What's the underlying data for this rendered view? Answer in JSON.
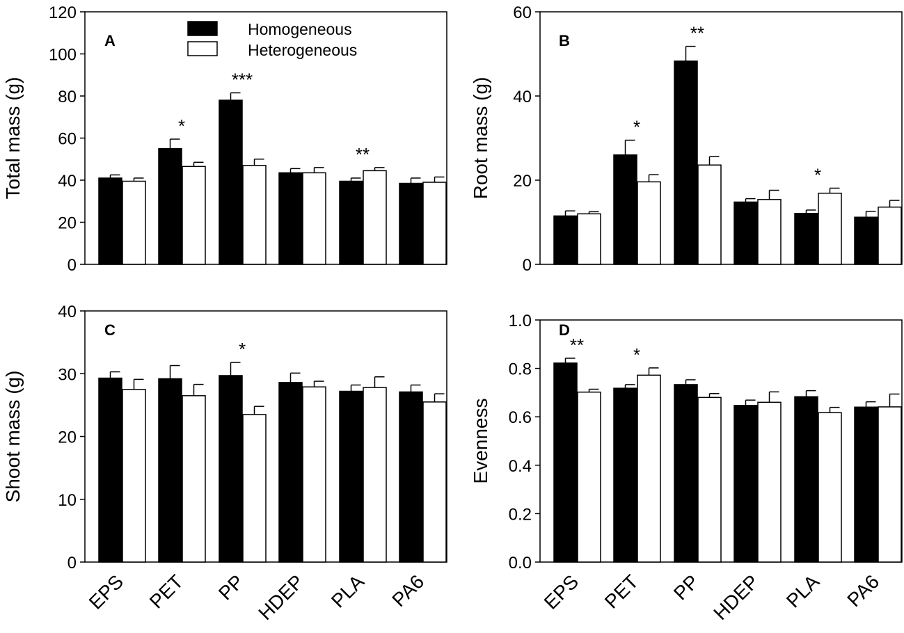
{
  "legend": {
    "homogeneous": "Homogeneous",
    "heterogeneous": "Heterogeneous"
  },
  "colors": {
    "homogeneous": "#000000",
    "heterogeneous": "#ffffff",
    "stroke": "#000000"
  },
  "chart_data": [
    {
      "type": "bar",
      "panel": "A",
      "ylabel": "Total mass (g)",
      "ylim": [
        0,
        120
      ],
      "yticks": [
        "0",
        "20",
        "40",
        "60",
        "80",
        "100",
        "120"
      ],
      "categories": [
        "EPS",
        "PET",
        "PP",
        "HDEP",
        "PLA",
        "PA6"
      ],
      "series": [
        {
          "name": "Homogeneous",
          "values": [
            41,
            55,
            78,
            43.5,
            39.5,
            38.5
          ],
          "errors": [
            1.5,
            4.5,
            3.5,
            2,
            1.5,
            2.5
          ]
        },
        {
          "name": "Heterogeneous",
          "values": [
            39.5,
            46.5,
            47,
            43.5,
            44.5,
            39
          ],
          "errors": [
            1.5,
            2,
            3,
            2.5,
            1.5,
            2.5
          ]
        }
      ],
      "significance": [
        "",
        "*",
        "***",
        "",
        "**",
        ""
      ]
    },
    {
      "type": "bar",
      "panel": "B",
      "ylabel": "Root mass (g)",
      "ylim": [
        0,
        60
      ],
      "yticks": [
        "0",
        "20",
        "40",
        "60"
      ],
      "categories": [
        "EPS",
        "PET",
        "PP",
        "HDEP",
        "PLA",
        "PA6"
      ],
      "series": [
        {
          "name": "Homogeneous",
          "values": [
            11.5,
            26,
            48.3,
            14.8,
            12.1,
            11.2
          ],
          "errors": [
            1.2,
            3.5,
            3.5,
            0.8,
            0.8,
            1.4
          ]
        },
        {
          "name": "Heterogeneous",
          "values": [
            12,
            19.6,
            23.6,
            15.4,
            16.9,
            13.6
          ],
          "errors": [
            0.5,
            1.7,
            2,
            2.2,
            1.2,
            1.6
          ]
        }
      ],
      "significance": [
        "",
        "*",
        "**",
        "",
        "*",
        ""
      ]
    },
    {
      "type": "bar",
      "panel": "C",
      "ylabel": "Shoot mass (g)",
      "ylim": [
        0,
        40
      ],
      "yticks": [
        "0",
        "10",
        "20",
        "30",
        "40"
      ],
      "categories": [
        "EPS",
        "PET",
        "PP",
        "HDEP",
        "PLA",
        "PA6"
      ],
      "series": [
        {
          "name": "Homogeneous",
          "values": [
            29.3,
            29.2,
            29.7,
            28.6,
            27.2,
            27.1
          ],
          "errors": [
            1,
            2.1,
            2.1,
            1.5,
            1,
            1.1
          ]
        },
        {
          "name": "Heterogeneous",
          "values": [
            27.5,
            26.5,
            23.5,
            27.9,
            27.8,
            25.5
          ],
          "errors": [
            1.6,
            1.8,
            1.3,
            0.9,
            1.7,
            1.3
          ]
        }
      ],
      "significance": [
        "",
        "",
        "*",
        "",
        "",
        ""
      ]
    },
    {
      "type": "bar",
      "panel": "D",
      "ylabel": "Evenness",
      "ylim": [
        0,
        1.0
      ],
      "yticks": [
        "0.0",
        "0.2",
        "0.4",
        "0.6",
        "0.8",
        "1.0"
      ],
      "categories": [
        "EPS",
        "PET",
        "PP",
        "HDEP",
        "PLA",
        "PA6"
      ],
      "series": [
        {
          "name": "Homogeneous",
          "values": [
            0.822,
            0.718,
            0.733,
            0.647,
            0.683,
            0.64
          ],
          "errors": [
            0.02,
            0.015,
            0.02,
            0.022,
            0.025,
            0.022
          ]
        },
        {
          "name": "Heterogeneous",
          "values": [
            0.702,
            0.772,
            0.68,
            0.66,
            0.617,
            0.641
          ],
          "errors": [
            0.012,
            0.03,
            0.016,
            0.043,
            0.022,
            0.053
          ]
        }
      ],
      "significance": [
        "**",
        "*",
        "",
        "",
        "",
        ""
      ]
    }
  ]
}
